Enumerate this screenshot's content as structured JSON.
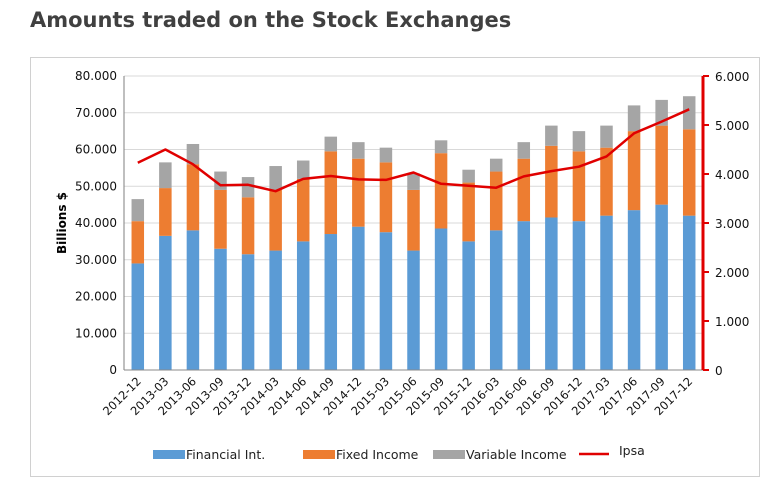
{
  "page": {
    "title": "Amounts traded on the Stock Exchanges"
  },
  "colors": {
    "financial": "#5b9bd5",
    "fixed": "#ed7d31",
    "variable": "#a5a5a5",
    "ipsa": "#e00000",
    "grid": "#d9d9d9",
    "left_axis": "#7f7f7f"
  },
  "chart_data": {
    "type": "bar",
    "stacked": true,
    "title": "",
    "ylabel": "Billions $",
    "ylabel_right": "",
    "ylim": [
      0,
      80000
    ],
    "ylim_right": [
      0,
      6000
    ],
    "yticks": [
      "0",
      "10.000",
      "20.000",
      "30.000",
      "40.000",
      "50.000",
      "60.000",
      "70.000",
      "80.000"
    ],
    "yticks_right": [
      "0",
      "1.000",
      "2.000",
      "3.000",
      "4.000",
      "5.000",
      "6.000"
    ],
    "grid": true,
    "legend_position": "bottom",
    "categories": [
      "2012-12",
      "2013-03",
      "2013-06",
      "2013-09",
      "2013-12",
      "2014-03",
      "2014-06",
      "2014-09",
      "2014-12",
      "2015-03",
      "2015-06",
      "2015-09",
      "2015-12",
      "2016-03",
      "2016-06",
      "2016-09",
      "2016-12",
      "2017-03",
      "2017-06",
      "2017-09",
      "2017-12"
    ],
    "series": [
      {
        "name": "Financial Int.",
        "kind": "bar",
        "axis": "left",
        "values": [
          29000,
          36500,
          38000,
          33000,
          31500,
          32500,
          35000,
          37000,
          39000,
          37500,
          32500,
          38500,
          35000,
          38000,
          40500,
          41500,
          40500,
          42000,
          43500,
          45000,
          42000
        ]
      },
      {
        "name": "Fixed Income",
        "kind": "bar",
        "axis": "left",
        "values": [
          11500,
          13000,
          18000,
          16000,
          15500,
          16500,
          17000,
          22500,
          18500,
          19000,
          16500,
          20500,
          16000,
          16000,
          17000,
          19500,
          19000,
          18500,
          21500,
          21500,
          23500
        ]
      },
      {
        "name": "Variable Income",
        "kind": "bar",
        "axis": "left",
        "values": [
          6000,
          7000,
          5500,
          5000,
          5500,
          6500,
          5000,
          4000,
          4500,
          4000,
          4500,
          3500,
          3500,
          3500,
          4500,
          5500,
          5500,
          6000,
          7000,
          7000,
          9000
        ]
      },
      {
        "name": "Ipsa",
        "kind": "line",
        "axis": "right",
        "values": [
          4230,
          4500,
          4200,
          3770,
          3780,
          3650,
          3900,
          3960,
          3890,
          3880,
          4030,
          3800,
          3760,
          3720,
          3950,
          4060,
          4150,
          4360,
          4830,
          5070,
          5320
        ]
      }
    ]
  }
}
